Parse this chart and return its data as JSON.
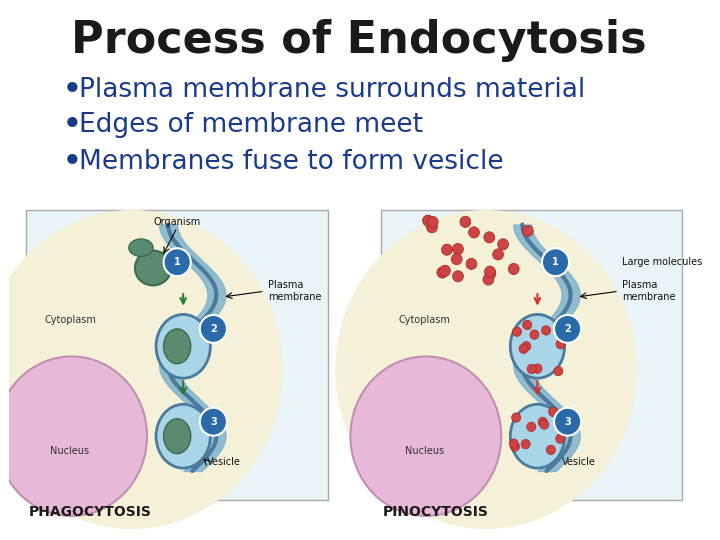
{
  "title": "Process of Endocytosis",
  "title_fontsize": 32,
  "title_fontweight": "bold",
  "title_color": "#1a1a1a",
  "bullet_points": [
    "Plasma membrane surrounds material",
    "Edges of membrane meet",
    "Membranes fuse to form vesicle"
  ],
  "bullet_color": "#1a3a8c",
  "bullet_fontsize": 19,
  "background_color": "#ffffff",
  "label_phago": "PHAGOCYTOSIS",
  "label_pino": "PINOCYTOSIS",
  "label_fontsize": 10,
  "label_color": "#1a1a1a",
  "diagram_bg": "#e8f4f8",
  "cytoplasm_color": "#f5f0d8",
  "nucleus_color": "#e8b8d8",
  "membrane_color": "#7ab0cc",
  "membrane_border": "#4a7a9c",
  "organism_color": "#5a8a70",
  "vesicle_inner": "#aad4e8",
  "step_circle_color": "#2a6aa8",
  "arrow_color": "#2a7a3a",
  "arrow_color_red": "#cc3333"
}
